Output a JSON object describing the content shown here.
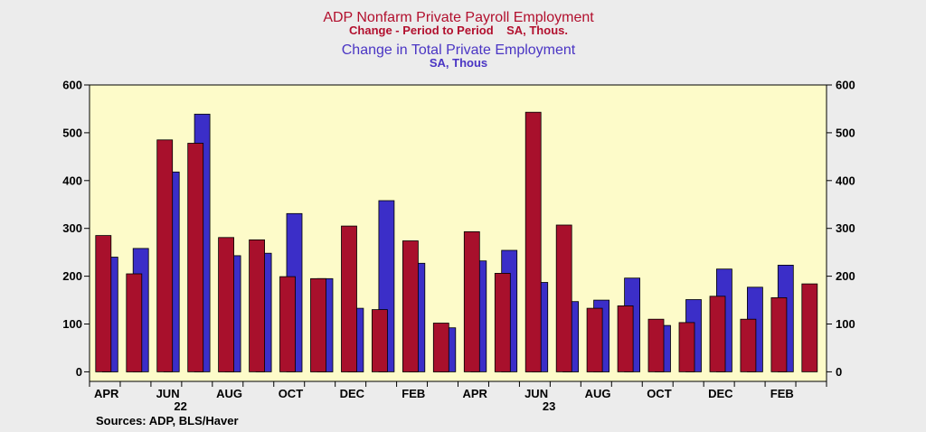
{
  "chart_data": {
    "type": "bar",
    "title_lines": [
      {
        "text": "ADP Nonfarm Private Payroll Employment",
        "color": "#b2102e"
      },
      {
        "text": "Change - Period to Period    SA, Thous.",
        "color": "#b2102e"
      },
      {
        "text": "Change in Total Private Employment",
        "color": "#4a35c4"
      },
      {
        "text": "SA, Thous",
        "color": "#4a35c4"
      }
    ],
    "categories": [
      "Apr 2022",
      "May 2022",
      "Jun 2022",
      "Jul 2022",
      "Aug 2022",
      "Sep 2022",
      "Oct 2022",
      "Nov 2022",
      "Dec 2022",
      "Jan 2023",
      "Feb 2023",
      "Mar 2023",
      "Apr 2023",
      "May 2023",
      "Jun 2023",
      "Jul 2023",
      "Aug 2023",
      "Sep 2023",
      "Oct 2023",
      "Nov 2023",
      "Dec 2023",
      "Jan 2024",
      "Feb 2024",
      "Mar 2024"
    ],
    "series": [
      {
        "color": "#a8102c",
        "values": [
          285,
          205,
          485,
          478,
          281,
          276,
          199,
          195,
          305,
          130,
          274,
          102,
          293,
          206,
          543,
          307,
          133,
          138,
          110,
          103,
          158,
          110,
          155,
          184
        ]
      },
      {
        "color": "#3b2ec8",
        "values": [
          240,
          258,
          418,
          539,
          243,
          248,
          331,
          195,
          133,
          358,
          227,
          92,
          232,
          254,
          187,
          147,
          150,
          196,
          97,
          151,
          215,
          177,
          223,
          null
        ]
      }
    ],
    "x_tick_labels": [
      {
        "index": 0,
        "label": "APR"
      },
      {
        "index": 2,
        "label": "JUN",
        "sublabel": "22"
      },
      {
        "index": 4,
        "label": "AUG"
      },
      {
        "index": 6,
        "label": "OCT"
      },
      {
        "index": 8,
        "label": "DEC"
      },
      {
        "index": 10,
        "label": "FEB"
      },
      {
        "index": 12,
        "label": "APR"
      },
      {
        "index": 14,
        "label": "JUN",
        "sublabel": "23"
      },
      {
        "index": 16,
        "label": "AUG"
      },
      {
        "index": 18,
        "label": "OCT"
      },
      {
        "index": 20,
        "label": "DEC"
      },
      {
        "index": 22,
        "label": "FEB"
      }
    ],
    "y_ticks": [
      0,
      100,
      200,
      300,
      400,
      500,
      600
    ],
    "ylim": [
      -20,
      600
    ],
    "grid": false,
    "plot_background": "#fdfbc9",
    "axes": "left-and-right",
    "source": "Sources:  ADP, BLS/Haver"
  }
}
